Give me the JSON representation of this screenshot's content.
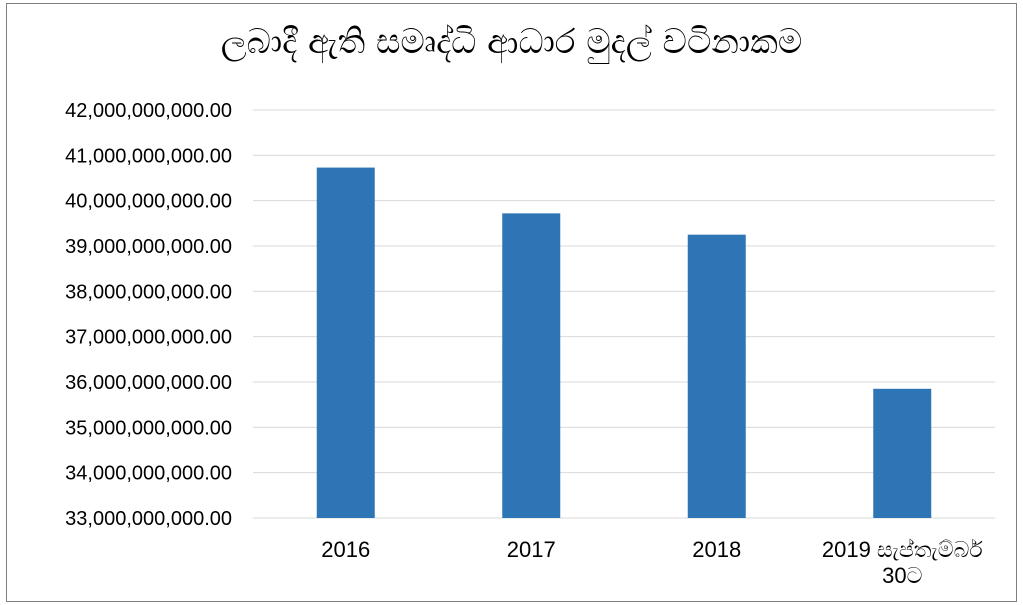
{
  "chart_data": {
    "type": "bar",
    "title": "ලබාදී ඇති සමෘද්ධි ආධාර මුදල් වටිනාකම",
    "xlabel": "",
    "ylabel": "",
    "categories": [
      "2016",
      "2017",
      "2018",
      "2019 සැප්තැම්බර් 30ට"
    ],
    "category_lines": [
      [
        "2016"
      ],
      [
        "2017"
      ],
      [
        "2018"
      ],
      [
        "2019 සැප්තැම්බර්",
        "30ට"
      ]
    ],
    "values": [
      40730000000,
      39720000000,
      39250000000,
      35850000000
    ],
    "ylim": [
      33000000000,
      42000000000
    ],
    "yticks": [
      33000000000,
      34000000000,
      35000000000,
      36000000000,
      37000000000,
      38000000000,
      39000000000,
      40000000000,
      41000000000,
      42000000000
    ],
    "ytick_labels": [
      "33,000,000,000.00",
      "34,000,000,000.00",
      "35,000,000,000.00",
      "36,000,000,000.00",
      "37,000,000,000.00",
      "38,000,000,000.00",
      "39,000,000,000.00",
      "40,000,000,000.00",
      "41,000,000,000.00",
      "42,000,000,000.00"
    ],
    "grid": true,
    "bar_color": "#2e75b6",
    "grid_color": "#d9d9d9"
  }
}
